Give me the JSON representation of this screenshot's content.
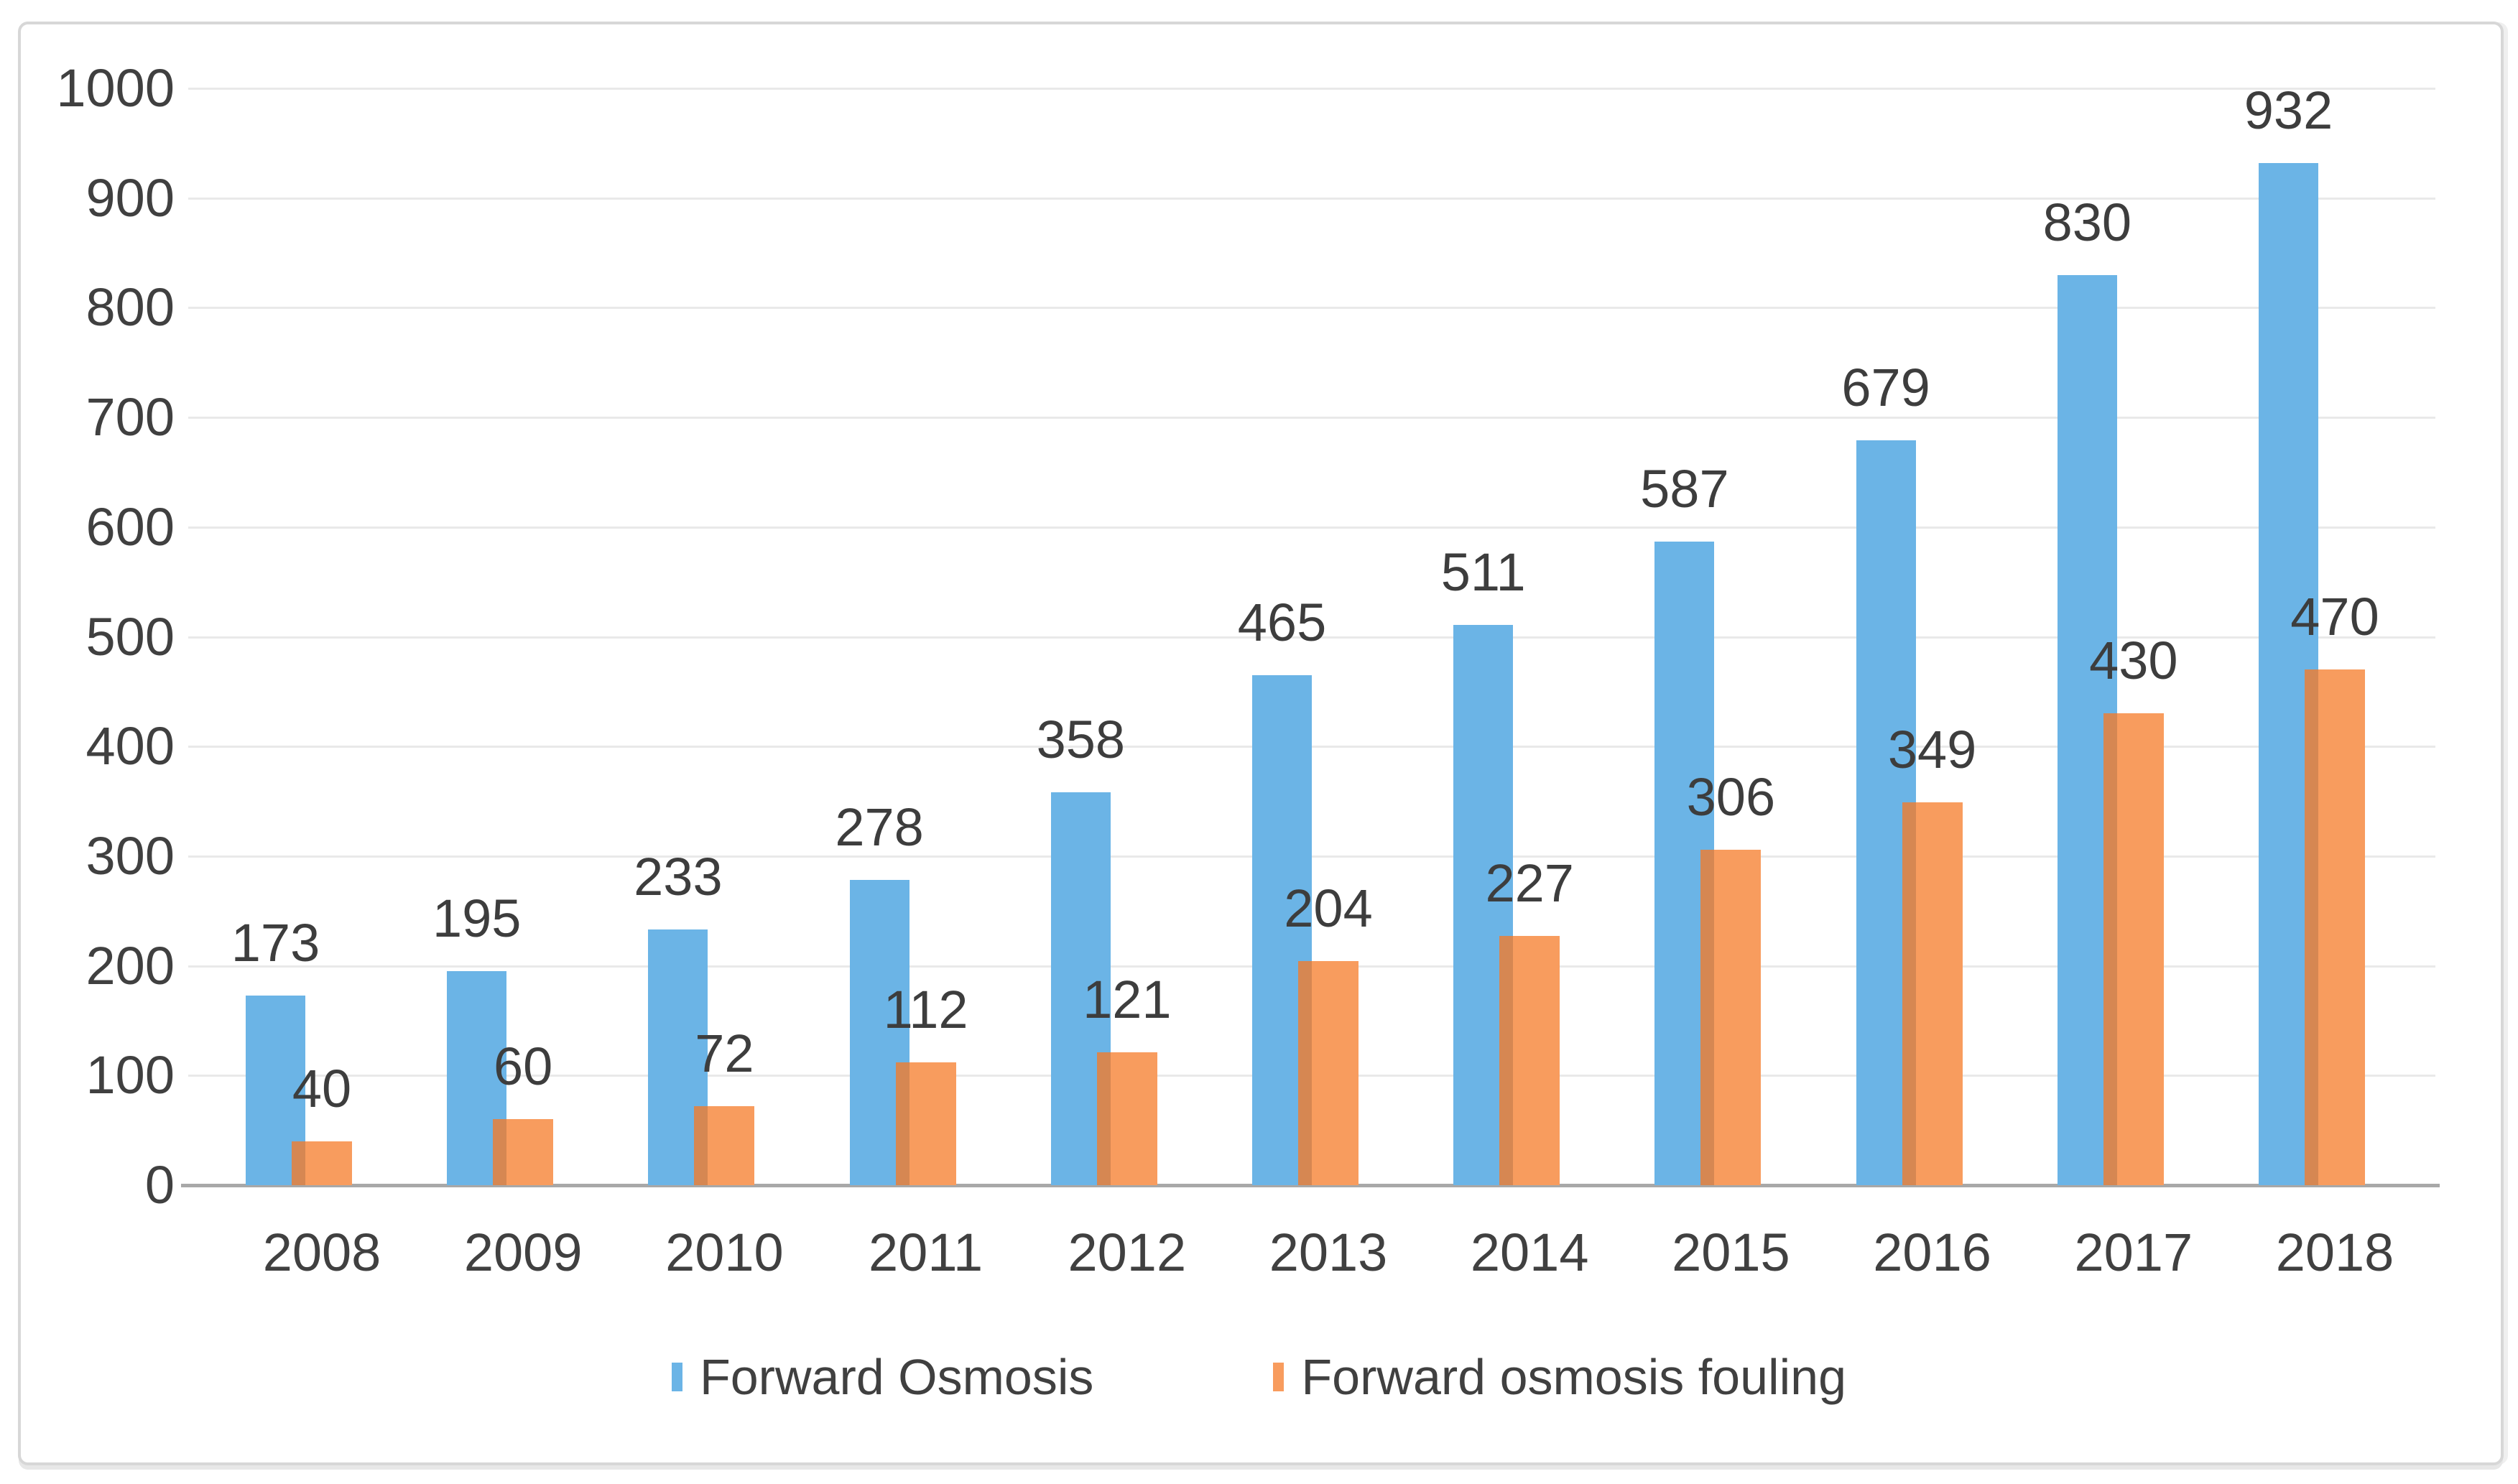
{
  "chart_data": {
    "type": "bar",
    "title": "",
    "xlabel": "",
    "ylabel": "",
    "categories": [
      "2008",
      "2009",
      "2010",
      "2011",
      "2012",
      "2013",
      "2014",
      "2015",
      "2016",
      "2017",
      "2018"
    ],
    "series": [
      {
        "name": "Forward Osmosis",
        "color": "#6bb4e6",
        "values": [
          173,
          195,
          233,
          278,
          358,
          465,
          511,
          587,
          679,
          830,
          932
        ]
      },
      {
        "name": "Forward osmosis fouling",
        "color": "#f89c5e",
        "overlap_shade_color": "#d68752",
        "values": [
          40,
          60,
          72,
          112,
          121,
          204,
          227,
          306,
          349,
          430,
          470
        ]
      }
    ],
    "ylim": [
      0,
      1000
    ],
    "yticks": [
      0,
      100,
      200,
      300,
      400,
      500,
      600,
      700,
      800,
      900,
      1000
    ],
    "grid": true,
    "data_labels": true,
    "legend_position": "bottom"
  },
  "colors": {
    "grid_line": "#e9e9e9",
    "axis_line": "#a8a8a8",
    "text": "#404040",
    "frame_border": "#d7d7d7",
    "background": "#ffffff"
  }
}
